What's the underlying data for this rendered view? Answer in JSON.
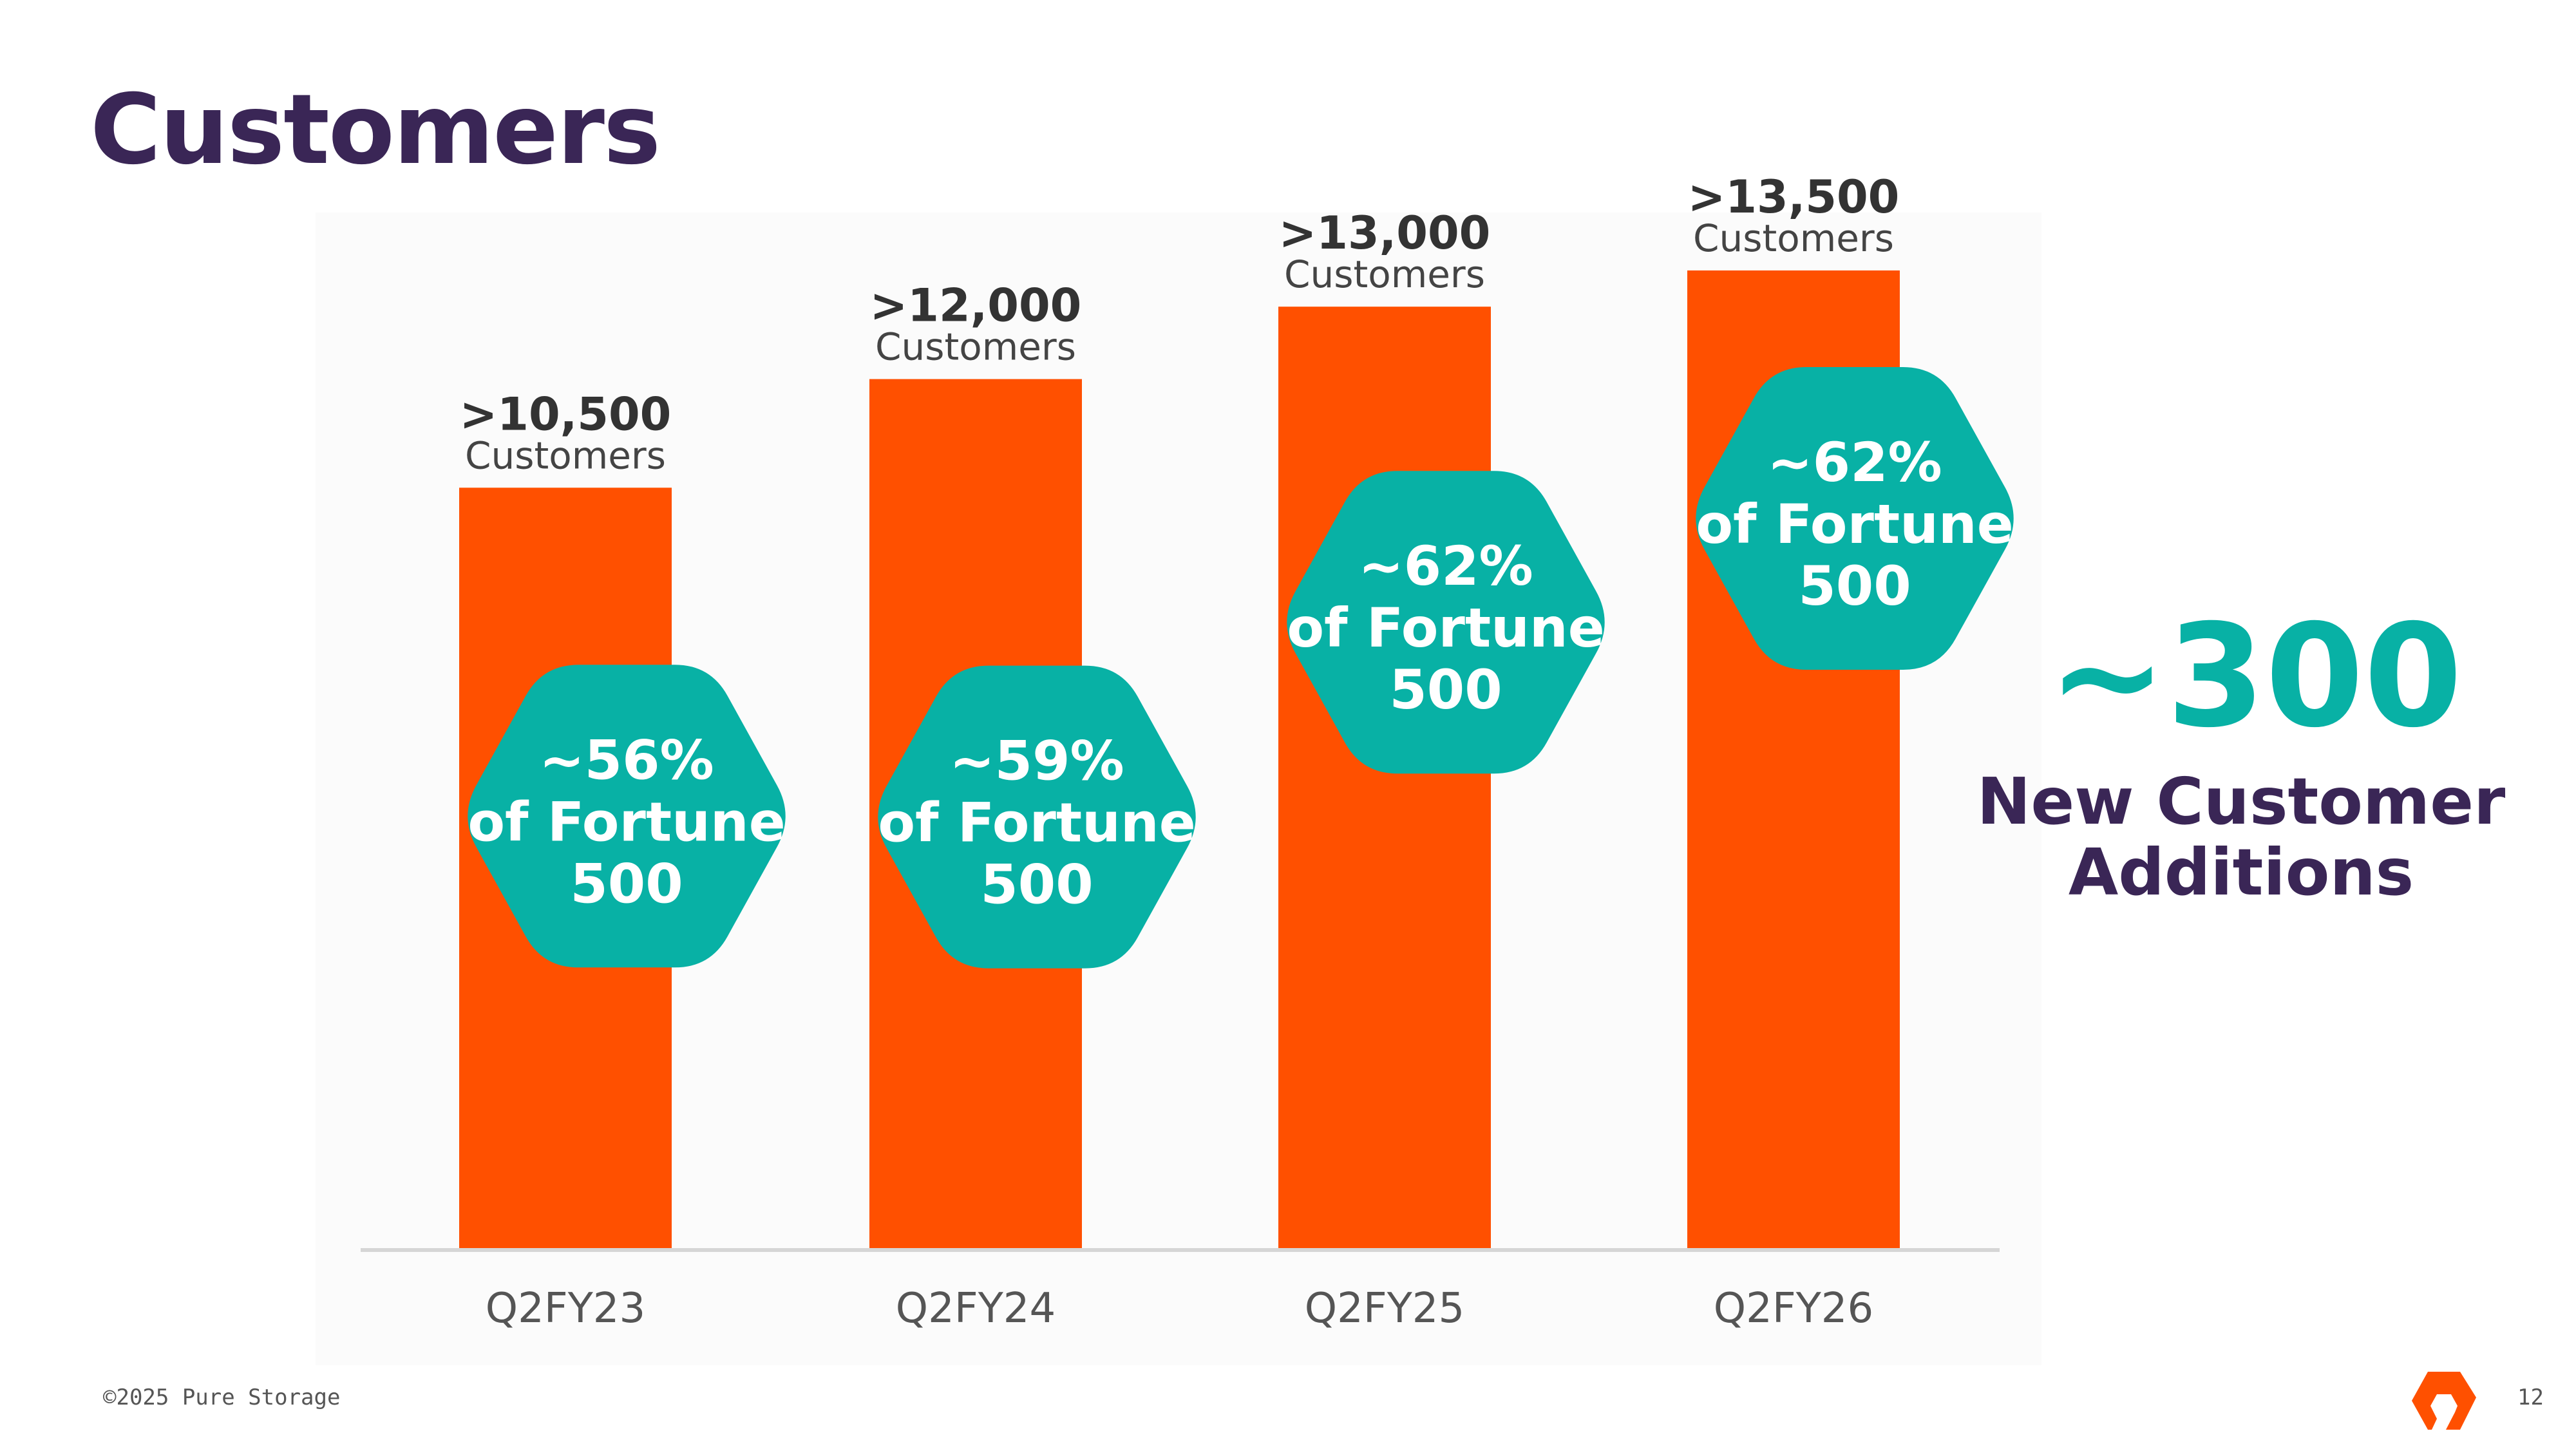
{
  "page": {
    "title": "Customers",
    "copyright": "©2025 Pure Storage",
    "page_number": "12",
    "logo_icon": "pure-storage-logo-icon"
  },
  "highlight": {
    "value": "~300",
    "label": "New Customer Additions"
  },
  "colors": {
    "title": "#3a2656",
    "bar": "#ff5000",
    "hexagon": "#08b1a5",
    "axis_text": "#555555"
  },
  "chart_data": {
    "type": "bar",
    "categories": [
      "Q2FY23",
      "Q2FY24",
      "Q2FY25",
      "Q2FY26"
    ],
    "values": [
      10500,
      12000,
      13000,
      13500
    ],
    "value_labels": [
      ">10,500",
      ">12,000",
      ">13,000",
      ">13,500"
    ],
    "value_sublabel": "Customers",
    "annotations": [
      {
        "line1": "~56%",
        "line2": "of Fortune",
        "line3": "500"
      },
      {
        "line1": "~59%",
        "line2": "of Fortune",
        "line3": "500"
      },
      {
        "line1": "~62%",
        "line2": "of Fortune",
        "line3": "500"
      },
      {
        "line1": "~62%",
        "line2": "of Fortune",
        "line3": "500"
      }
    ],
    "ylim": [
      0,
      14300
    ],
    "grid": false,
    "legend": "none"
  }
}
